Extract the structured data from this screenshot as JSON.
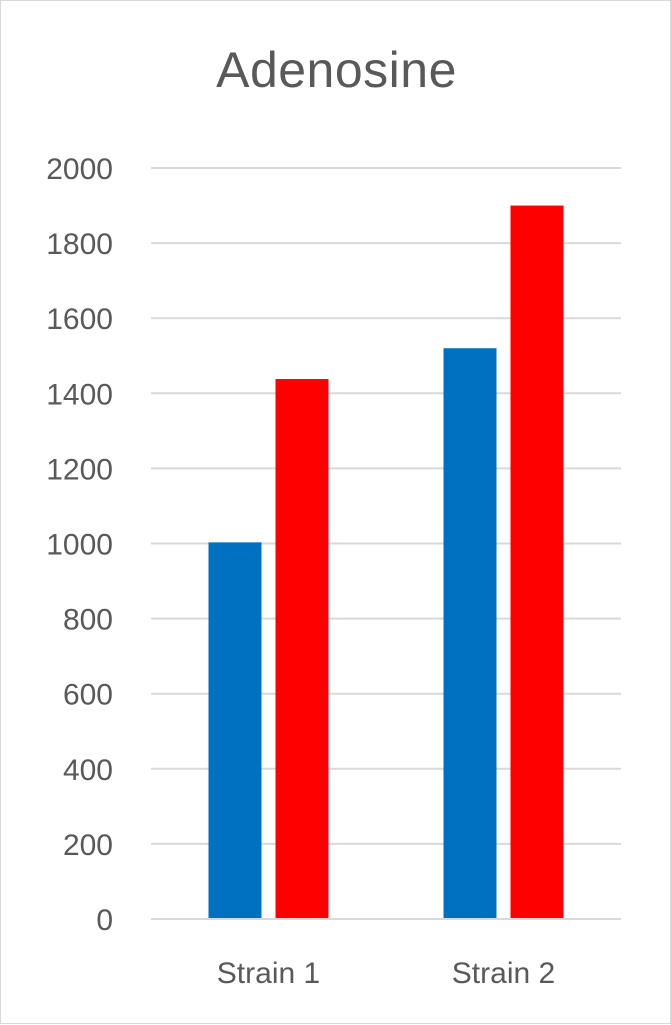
{
  "chart_data": {
    "type": "bar",
    "title": "Adenosine",
    "xlabel": "",
    "ylabel": "",
    "categories": [
      "Strain 1",
      "Strain 2"
    ],
    "series": [
      {
        "values": [
          1003,
          1520
        ],
        "color": "#0070c0"
      },
      {
        "values": [
          1438,
          1900
        ],
        "color": "#ff0000"
      }
    ],
    "ylim": [
      0,
      2000
    ],
    "yticks": [
      0,
      200,
      400,
      600,
      800,
      1000,
      1200,
      1400,
      1600,
      1800,
      2000
    ],
    "grid": true,
    "legend": "none"
  }
}
